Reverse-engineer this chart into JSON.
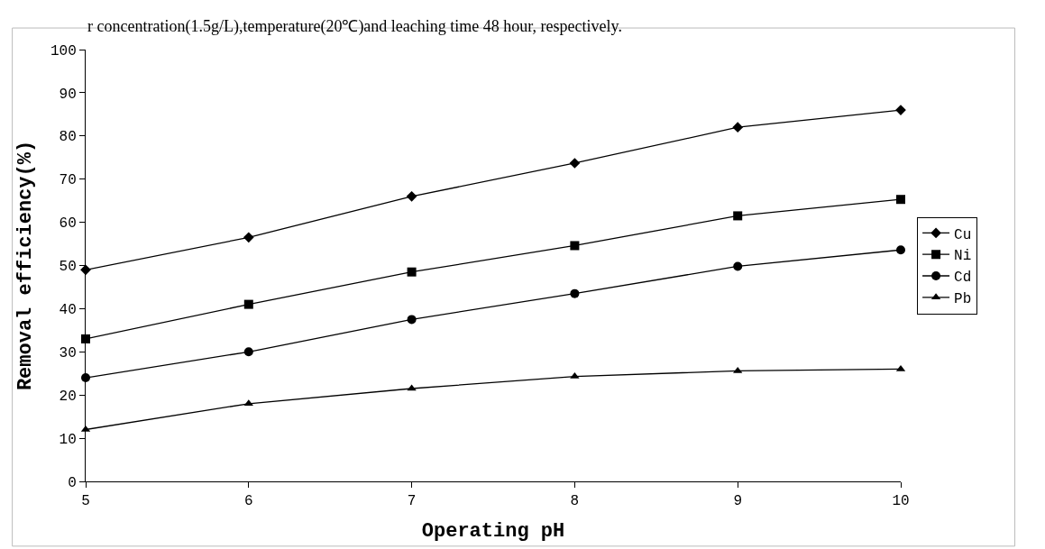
{
  "chart_data": {
    "type": "line",
    "xlabel": "Operating pH",
    "ylabel": "Removal efficiency(%)",
    "annotations": [
      "r concentration(1.5g/L),temperature(20℃)and leaching time 48 hour, respectively."
    ],
    "x": [
      5,
      6,
      7,
      8,
      9,
      10
    ],
    "series": [
      {
        "name": "Cu",
        "color": "#000000",
        "marker": "diamond",
        "values": [
          49,
          56.5,
          66,
          73.7,
          82,
          86
        ]
      },
      {
        "name": "Ni",
        "color": "#000000",
        "marker": "square",
        "values": [
          33,
          41,
          48.5,
          54.6,
          61.5,
          65.3
        ]
      },
      {
        "name": "Cd",
        "color": "#000000",
        "marker": "circle",
        "values": [
          24,
          30,
          37.5,
          43.5,
          49.8,
          53.6
        ]
      },
      {
        "name": "Pb",
        "color": "#000000",
        "marker": "triangle",
        "values": [
          12,
          18,
          21.5,
          24.3,
          25.6,
          26
        ]
      }
    ],
    "xlim": [
      5,
      10
    ],
    "xticks": [
      5,
      6,
      7,
      8,
      9,
      10
    ],
    "ylim": [
      0,
      100
    ],
    "yticks": [
      0,
      10,
      20,
      30,
      40,
      50,
      60,
      70,
      80,
      90,
      100
    ],
    "legend": "right",
    "line_style": "solid"
  }
}
